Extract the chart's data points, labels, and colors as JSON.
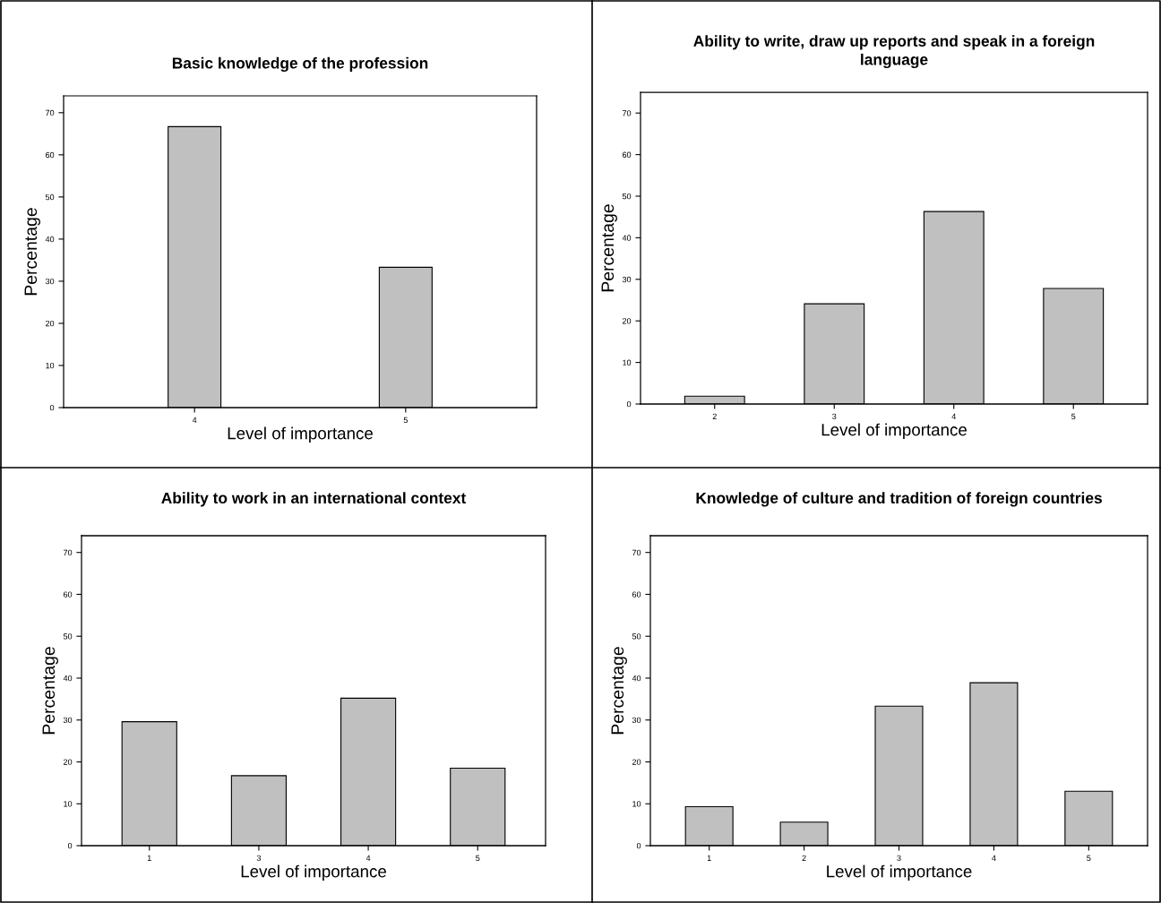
{
  "chart_data": [
    {
      "type": "bar",
      "title": "Basic knowledge of the profession",
      "xlabel": "Level of importance",
      "ylabel": "Percentage",
      "categories": [
        "4",
        "5"
      ],
      "values": [
        66.7,
        33.3
      ],
      "color": "#c0c0c0",
      "ylim": [
        0,
        74
      ],
      "yticks": [
        0,
        10,
        20,
        30,
        40,
        50,
        60,
        70
      ]
    },
    {
      "type": "bar",
      "title": "Ability to write, draw up reports and speak in a foreign\nlanguage",
      "xlabel": "Level of importance",
      "ylabel": "Percentage",
      "categories": [
        "2",
        "3",
        "4",
        "5"
      ],
      "values": [
        1.9,
        24.1,
        46.3,
        27.8
      ],
      "color": "#c0c0c0",
      "ylim": [
        0,
        75
      ],
      "yticks": [
        0,
        10,
        20,
        30,
        40,
        50,
        60,
        70
      ]
    },
    {
      "type": "bar",
      "title": "Ability to work in an international context",
      "xlabel": "Level of importance",
      "ylabel": "Percentage",
      "categories": [
        "1",
        "3",
        "4",
        "5"
      ],
      "values": [
        29.6,
        16.7,
        35.2,
        18.5
      ],
      "color": "#c0c0c0",
      "ylim": [
        0,
        74
      ],
      "yticks": [
        0,
        10,
        20,
        30,
        40,
        50,
        60,
        70
      ]
    },
    {
      "type": "bar",
      "title": "Knowledge of culture and tradition of foreign countries",
      "xlabel": "Level of importance",
      "ylabel": "Percentage",
      "categories": [
        "1",
        "2",
        "3",
        "4",
        "5"
      ],
      "values": [
        9.3,
        5.6,
        33.3,
        38.9,
        13.0
      ],
      "color": "#c0c0c0",
      "ylim": [
        0,
        74
      ],
      "yticks": [
        0,
        10,
        20,
        30,
        40,
        50,
        60,
        70
      ]
    }
  ]
}
